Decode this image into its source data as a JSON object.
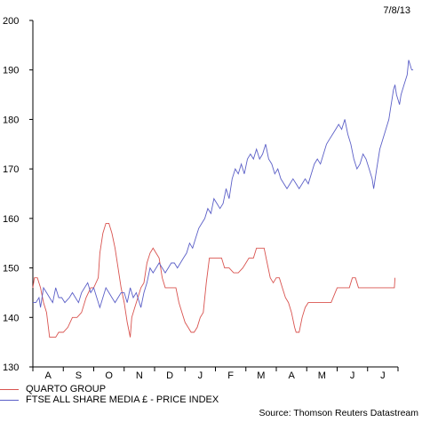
{
  "header": {
    "date": "7/8/13"
  },
  "footer": {
    "source": "Source: Thomson Reuters Datastream"
  },
  "chart_data": {
    "type": "line",
    "title": "",
    "xlabel": "",
    "ylabel": "",
    "ylim": [
      130,
      200
    ],
    "yticks": [
      130,
      140,
      150,
      160,
      170,
      180,
      190,
      200
    ],
    "xtick_labels": [
      "A",
      "S",
      "O",
      "N",
      "D",
      "J",
      "F",
      "M",
      "A",
      "M",
      "J",
      "J"
    ],
    "xlim": [
      0,
      12
    ],
    "grid": false,
    "legend_position": "bottom-left",
    "series": [
      {
        "name": "QUARTO GROUP",
        "color": "#d9534f",
        "points": [
          [
            0.0,
            146
          ],
          [
            0.05,
            148
          ],
          [
            0.15,
            148
          ],
          [
            0.25,
            146
          ],
          [
            0.35,
            143
          ],
          [
            0.45,
            141
          ],
          [
            0.55,
            136
          ],
          [
            0.75,
            136
          ],
          [
            0.85,
            137
          ],
          [
            1.0,
            137
          ],
          [
            1.15,
            138
          ],
          [
            1.3,
            140
          ],
          [
            1.45,
            140
          ],
          [
            1.6,
            141
          ],
          [
            1.75,
            144
          ],
          [
            1.9,
            146
          ],
          [
            2.0,
            146
          ],
          [
            2.15,
            148
          ],
          [
            2.2,
            153
          ],
          [
            2.3,
            157
          ],
          [
            2.4,
            159
          ],
          [
            2.5,
            159
          ],
          [
            2.6,
            157
          ],
          [
            2.7,
            154
          ],
          [
            2.8,
            150
          ],
          [
            2.9,
            146
          ],
          [
            3.0,
            143
          ],
          [
            3.1,
            139
          ],
          [
            3.2,
            136
          ],
          [
            3.25,
            140
          ],
          [
            3.35,
            142
          ],
          [
            3.45,
            144
          ],
          [
            3.55,
            146
          ],
          [
            3.65,
            147
          ],
          [
            3.75,
            151
          ],
          [
            3.85,
            153
          ],
          [
            3.95,
            154
          ],
          [
            4.05,
            153
          ],
          [
            4.15,
            152
          ],
          [
            4.25,
            148
          ],
          [
            4.35,
            146
          ],
          [
            4.5,
            146
          ],
          [
            4.6,
            146
          ],
          [
            4.7,
            146
          ],
          [
            4.8,
            143
          ],
          [
            4.9,
            141
          ],
          [
            5.0,
            139
          ],
          [
            5.1,
            138
          ],
          [
            5.2,
            137
          ],
          [
            5.3,
            137
          ],
          [
            5.4,
            138
          ],
          [
            5.5,
            140
          ],
          [
            5.6,
            141
          ],
          [
            5.7,
            147
          ],
          [
            5.8,
            152
          ],
          [
            5.9,
            152
          ],
          [
            6.0,
            152
          ],
          [
            6.2,
            152
          ],
          [
            6.3,
            150
          ],
          [
            6.45,
            150
          ],
          [
            6.6,
            149
          ],
          [
            6.75,
            149
          ],
          [
            6.9,
            150
          ],
          [
            7.0,
            151
          ],
          [
            7.1,
            152
          ],
          [
            7.25,
            152
          ],
          [
            7.35,
            154
          ],
          [
            7.5,
            154
          ],
          [
            7.6,
            154
          ],
          [
            7.7,
            151
          ],
          [
            7.8,
            148
          ],
          [
            7.9,
            147
          ],
          [
            8.0,
            148
          ],
          [
            8.1,
            148
          ],
          [
            8.2,
            146
          ],
          [
            8.3,
            144
          ],
          [
            8.4,
            143
          ],
          [
            8.5,
            141
          ],
          [
            8.6,
            138
          ],
          [
            8.65,
            137
          ],
          [
            8.75,
            137
          ],
          [
            8.85,
            140
          ],
          [
            8.95,
            142
          ],
          [
            9.05,
            143
          ],
          [
            9.2,
            143
          ],
          [
            9.4,
            143
          ],
          [
            9.6,
            143
          ],
          [
            9.8,
            143
          ],
          [
            10.0,
            146
          ],
          [
            10.2,
            146
          ],
          [
            10.4,
            146
          ],
          [
            10.5,
            148
          ],
          [
            10.6,
            148
          ],
          [
            10.7,
            146
          ],
          [
            10.9,
            146
          ],
          [
            11.0,
            146
          ],
          [
            11.2,
            146
          ],
          [
            11.4,
            146
          ],
          [
            11.6,
            146
          ],
          [
            11.8,
            146
          ],
          [
            11.88,
            146
          ],
          [
            11.9,
            148
          ]
        ]
      },
      {
        "name": "FTSE ALL SHARE MEDIA £ - PRICE INDEX",
        "color": "#5b5fc7",
        "points": [
          [
            0.0,
            143
          ],
          [
            0.1,
            143
          ],
          [
            0.2,
            144
          ],
          [
            0.25,
            142
          ],
          [
            0.35,
            146
          ],
          [
            0.45,
            145
          ],
          [
            0.55,
            144
          ],
          [
            0.65,
            143
          ],
          [
            0.75,
            146
          ],
          [
            0.85,
            144
          ],
          [
            0.95,
            144
          ],
          [
            1.05,
            143
          ],
          [
            1.2,
            144
          ],
          [
            1.3,
            145
          ],
          [
            1.4,
            144
          ],
          [
            1.5,
            143
          ],
          [
            1.6,
            145
          ],
          [
            1.7,
            146
          ],
          [
            1.8,
            147
          ],
          [
            1.9,
            145
          ],
          [
            2.0,
            146
          ],
          [
            2.1,
            144
          ],
          [
            2.2,
            142
          ],
          [
            2.3,
            144
          ],
          [
            2.4,
            146
          ],
          [
            2.5,
            145
          ],
          [
            2.6,
            144
          ],
          [
            2.7,
            143
          ],
          [
            2.8,
            144
          ],
          [
            2.9,
            145
          ],
          [
            3.0,
            145
          ],
          [
            3.1,
            143
          ],
          [
            3.2,
            146
          ],
          [
            3.3,
            144
          ],
          [
            3.4,
            145
          ],
          [
            3.5,
            143
          ],
          [
            3.55,
            142
          ],
          [
            3.65,
            145
          ],
          [
            3.75,
            147
          ],
          [
            3.85,
            150
          ],
          [
            3.95,
            149
          ],
          [
            4.05,
            150
          ],
          [
            4.15,
            151
          ],
          [
            4.25,
            150
          ],
          [
            4.35,
            149
          ],
          [
            4.45,
            150
          ],
          [
            4.55,
            151
          ],
          [
            4.65,
            151
          ],
          [
            4.75,
            150
          ],
          [
            4.85,
            151
          ],
          [
            4.95,
            152
          ],
          [
            5.05,
            153
          ],
          [
            5.15,
            155
          ],
          [
            5.25,
            154
          ],
          [
            5.35,
            156
          ],
          [
            5.45,
            158
          ],
          [
            5.55,
            159
          ],
          [
            5.65,
            160
          ],
          [
            5.75,
            162
          ],
          [
            5.85,
            161
          ],
          [
            5.95,
            164
          ],
          [
            6.05,
            163
          ],
          [
            6.15,
            162
          ],
          [
            6.25,
            163
          ],
          [
            6.35,
            166
          ],
          [
            6.45,
            164
          ],
          [
            6.55,
            168
          ],
          [
            6.65,
            170
          ],
          [
            6.75,
            169
          ],
          [
            6.85,
            171
          ],
          [
            6.95,
            169
          ],
          [
            7.05,
            172
          ],
          [
            7.15,
            173
          ],
          [
            7.25,
            172
          ],
          [
            7.35,
            174
          ],
          [
            7.45,
            172
          ],
          [
            7.55,
            173
          ],
          [
            7.65,
            175
          ],
          [
            7.75,
            172
          ],
          [
            7.85,
            171
          ],
          [
            7.95,
            169
          ],
          [
            8.05,
            170
          ],
          [
            8.15,
            168
          ],
          [
            8.25,
            167
          ],
          [
            8.35,
            166
          ],
          [
            8.45,
            167
          ],
          [
            8.55,
            168
          ],
          [
            8.65,
            167
          ],
          [
            8.75,
            166
          ],
          [
            8.85,
            167
          ],
          [
            8.95,
            168
          ],
          [
            9.05,
            167
          ],
          [
            9.15,
            169
          ],
          [
            9.25,
            171
          ],
          [
            9.35,
            172
          ],
          [
            9.45,
            171
          ],
          [
            9.55,
            173
          ],
          [
            9.65,
            175
          ],
          [
            9.75,
            176
          ],
          [
            9.85,
            177
          ],
          [
            9.95,
            178
          ],
          [
            10.05,
            179
          ],
          [
            10.15,
            178
          ],
          [
            10.25,
            180
          ],
          [
            10.35,
            177
          ],
          [
            10.45,
            175
          ],
          [
            10.55,
            172
          ],
          [
            10.65,
            170
          ],
          [
            10.75,
            171
          ],
          [
            10.85,
            173
          ],
          [
            10.95,
            172
          ],
          [
            11.05,
            170
          ],
          [
            11.15,
            168
          ],
          [
            11.2,
            166
          ],
          [
            11.3,
            170
          ],
          [
            11.4,
            174
          ],
          [
            11.5,
            176
          ],
          [
            11.6,
            178
          ],
          [
            11.7,
            180
          ],
          [
            11.75,
            182
          ],
          [
            11.8,
            184
          ],
          [
            11.85,
            186
          ],
          [
            11.9,
            187
          ],
          [
            11.95,
            185
          ],
          [
            12.0,
            184
          ],
          [
            12.05,
            183
          ],
          [
            12.1,
            185
          ],
          [
            12.2,
            187
          ],
          [
            12.3,
            189
          ],
          [
            12.35,
            192
          ],
          [
            12.4,
            191
          ],
          [
            12.45,
            190
          ],
          [
            12.5,
            190
          ]
        ]
      }
    ]
  }
}
